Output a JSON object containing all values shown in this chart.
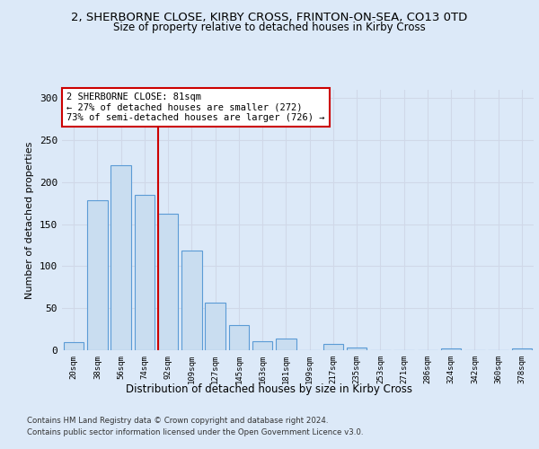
{
  "title_line1": "2, SHERBORNE CLOSE, KIRBY CROSS, FRINTON-ON-SEA, CO13 0TD",
  "title_line2": "Size of property relative to detached houses in Kirby Cross",
  "xlabel": "Distribution of detached houses by size in Kirby Cross",
  "ylabel": "Number of detached properties",
  "bar_labels": [
    "20sqm",
    "38sqm",
    "56sqm",
    "74sqm",
    "92sqm",
    "109sqm",
    "127sqm",
    "145sqm",
    "163sqm",
    "181sqm",
    "199sqm",
    "217sqm",
    "235sqm",
    "253sqm",
    "271sqm",
    "286sqm",
    "324sqm",
    "342sqm",
    "360sqm",
    "378sqm"
  ],
  "bar_values": [
    10,
    178,
    220,
    185,
    163,
    119,
    57,
    30,
    11,
    14,
    0,
    7,
    3,
    0,
    0,
    0,
    2,
    0,
    0,
    2
  ],
  "bar_color": "#c9ddf0",
  "bar_edge_color": "#5b9bd5",
  "grid_color": "#d0d8e8",
  "vline_pos": 3.575,
  "vline_color": "#cc0000",
  "annotation_text": "2 SHERBORNE CLOSE: 81sqm\n← 27% of detached houses are smaller (272)\n73% of semi-detached houses are larger (726) →",
  "annotation_box_color": "#ffffff",
  "annotation_box_edge_color": "#cc0000",
  "ylim": [
    0,
    310
  ],
  "yticks": [
    0,
    50,
    100,
    150,
    200,
    250,
    300
  ],
  "footer_line1": "Contains HM Land Registry data © Crown copyright and database right 2024.",
  "footer_line2": "Contains public sector information licensed under the Open Government Licence v3.0.",
  "background_color": "#dce9f8",
  "axes_background_color": "#dce9f8"
}
